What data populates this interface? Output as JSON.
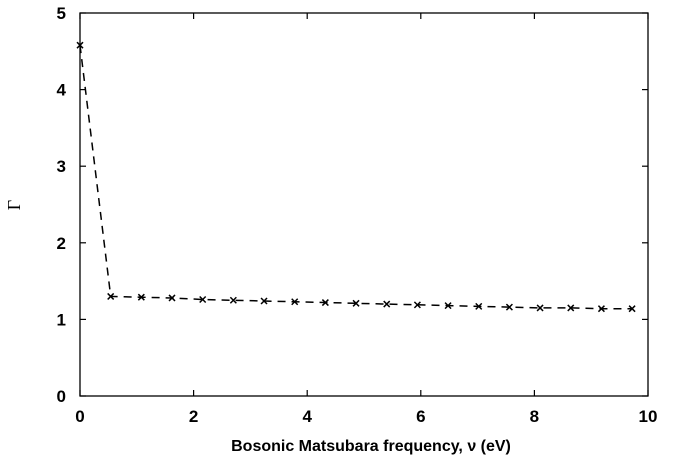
{
  "chart_data": {
    "type": "line",
    "xlabel": "Bosonic Matsubara frequency, ν (eV)",
    "ylabel": "Γ",
    "xlim": [
      0,
      10
    ],
    "ylim": [
      0,
      5
    ],
    "xticks": [
      "0",
      "2",
      "4",
      "6",
      "8",
      "10"
    ],
    "yticks": [
      "0",
      "1",
      "2",
      "3",
      "4",
      "5"
    ],
    "grid": false,
    "line_style": "dashed",
    "marker": "x",
    "color": "#000000",
    "series": [
      {
        "x": [
          0.0,
          0.54,
          1.08,
          1.62,
          2.16,
          2.7,
          3.24,
          3.78,
          4.32,
          4.86,
          5.4,
          5.94,
          6.48,
          7.02,
          7.56,
          8.1,
          8.64,
          9.18,
          9.72
        ],
        "y": [
          4.58,
          1.3,
          1.29,
          1.28,
          1.26,
          1.25,
          1.24,
          1.23,
          1.22,
          1.21,
          1.2,
          1.19,
          1.18,
          1.17,
          1.16,
          1.15,
          1.15,
          1.14,
          1.14
        ]
      }
    ]
  }
}
